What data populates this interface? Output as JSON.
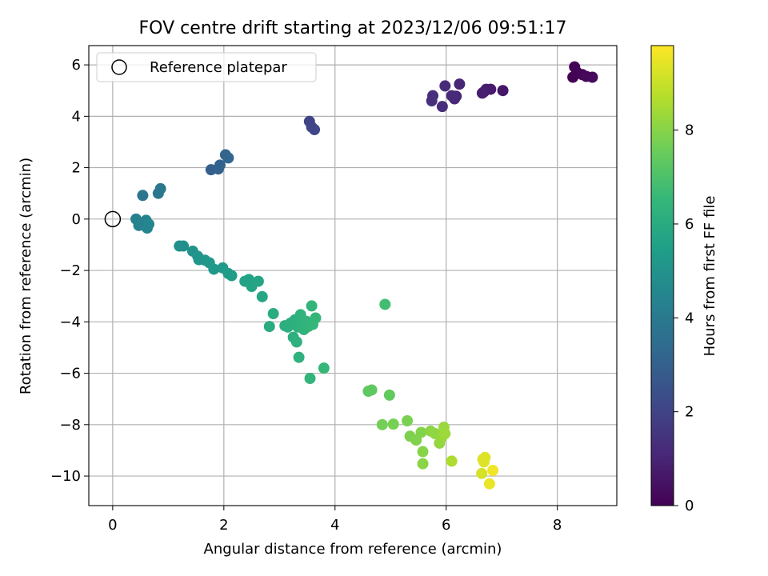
{
  "chart_data": {
    "type": "scatter",
    "title": "FOV centre drift starting at 2023/12/06 09:51:17",
    "xlabel": "Angular distance from reference (arcmin)",
    "ylabel": "Rotation from reference (arcmin)",
    "xlim": [
      -0.43,
      9.07
    ],
    "ylim": [
      -11.15,
      6.75
    ],
    "xticks": [
      0,
      2,
      4,
      6,
      8
    ],
    "yticks": [
      6,
      4,
      2,
      0,
      -2,
      -4,
      -6,
      -8,
      -10
    ],
    "ytick_labels": [
      "6",
      "4",
      "2",
      "0",
      "−2",
      "−4",
      "−6",
      "−8",
      "−10"
    ],
    "grid": true,
    "legend": {
      "placement": "upper-left",
      "entries": [
        "Reference platepar"
      ]
    },
    "reference_point": {
      "x": 0,
      "y": 0
    },
    "colorbar": {
      "label": "Hours from first FF file",
      "range": [
        0,
        9.8
      ],
      "ticks": [
        0,
        2,
        4,
        6,
        8
      ],
      "colormap": "viridis",
      "colors": [
        "#440154",
        "#482878",
        "#3e4989",
        "#31688e",
        "#26828e",
        "#1f9e89",
        "#35b779",
        "#6ece58",
        "#b5de2b",
        "#fde725"
      ]
    },
    "points": [
      {
        "x": 8.28,
        "y": 5.52,
        "h": 0.0
      },
      {
        "x": 8.31,
        "y": 5.92,
        "h": 0.05
      },
      {
        "x": 8.35,
        "y": 5.72,
        "h": 0.1
      },
      {
        "x": 8.45,
        "y": 5.62,
        "h": 0.15
      },
      {
        "x": 8.52,
        "y": 5.55,
        "h": 0.2
      },
      {
        "x": 8.63,
        "y": 5.52,
        "h": 0.25
      },
      {
        "x": 7.02,
        "y": 5.0,
        "h": 0.6
      },
      {
        "x": 6.8,
        "y": 5.05,
        "h": 0.7
      },
      {
        "x": 6.72,
        "y": 5.05,
        "h": 0.75
      },
      {
        "x": 6.68,
        "y": 4.95,
        "h": 0.8
      },
      {
        "x": 6.65,
        "y": 4.9,
        "h": 0.85
      },
      {
        "x": 6.24,
        "y": 5.25,
        "h": 1.0
      },
      {
        "x": 6.18,
        "y": 4.78,
        "h": 1.05
      },
      {
        "x": 6.15,
        "y": 4.68,
        "h": 1.1
      },
      {
        "x": 6.1,
        "y": 4.8,
        "h": 1.15
      },
      {
        "x": 5.98,
        "y": 5.18,
        "h": 1.2
      },
      {
        "x": 5.93,
        "y": 4.38,
        "h": 1.25
      },
      {
        "x": 5.76,
        "y": 4.8,
        "h": 1.3
      },
      {
        "x": 5.74,
        "y": 4.6,
        "h": 1.35
      },
      {
        "x": 3.54,
        "y": 3.8,
        "h": 2.0
      },
      {
        "x": 3.58,
        "y": 3.58,
        "h": 2.05
      },
      {
        "x": 3.63,
        "y": 3.48,
        "h": 2.1
      },
      {
        "x": 1.77,
        "y": 1.92,
        "h": 3.0
      },
      {
        "x": 1.9,
        "y": 1.95,
        "h": 3.05
      },
      {
        "x": 1.93,
        "y": 2.1,
        "h": 3.1
      },
      {
        "x": 2.03,
        "y": 2.5,
        "h": 3.15
      },
      {
        "x": 2.08,
        "y": 2.38,
        "h": 3.2
      },
      {
        "x": 0.54,
        "y": 0.92,
        "h": 3.8
      },
      {
        "x": 0.82,
        "y": 1.0,
        "h": 3.85
      },
      {
        "x": 0.86,
        "y": 1.18,
        "h": 3.9
      },
      {
        "x": 0.42,
        "y": 0.0,
        "h": 4.3
      },
      {
        "x": 0.47,
        "y": -0.25,
        "h": 4.35
      },
      {
        "x": 0.6,
        "y": -0.05,
        "h": 4.4
      },
      {
        "x": 0.62,
        "y": -0.35,
        "h": 4.45
      },
      {
        "x": 0.65,
        "y": -0.2,
        "h": 4.5
      },
      {
        "x": 1.2,
        "y": -1.05,
        "h": 4.9
      },
      {
        "x": 1.27,
        "y": -1.05,
        "h": 4.95
      },
      {
        "x": 1.44,
        "y": -1.25,
        "h": 5.0
      },
      {
        "x": 1.53,
        "y": -1.45,
        "h": 5.05
      },
      {
        "x": 1.55,
        "y": -1.58,
        "h": 5.1
      },
      {
        "x": 1.66,
        "y": -1.6,
        "h": 5.15
      },
      {
        "x": 1.74,
        "y": -1.7,
        "h": 5.2
      },
      {
        "x": 1.82,
        "y": -1.95,
        "h": 5.25
      },
      {
        "x": 1.98,
        "y": -1.9,
        "h": 5.3
      },
      {
        "x": 2.08,
        "y": -2.12,
        "h": 5.35
      },
      {
        "x": 2.14,
        "y": -2.2,
        "h": 5.4
      },
      {
        "x": 2.38,
        "y": -2.42,
        "h": 5.6
      },
      {
        "x": 2.45,
        "y": -2.35,
        "h": 5.65
      },
      {
        "x": 2.5,
        "y": -2.62,
        "h": 5.7
      },
      {
        "x": 2.62,
        "y": -2.42,
        "h": 5.75
      },
      {
        "x": 2.69,
        "y": -3.02,
        "h": 5.8
      },
      {
        "x": 2.82,
        "y": -4.18,
        "h": 6.0
      },
      {
        "x": 2.89,
        "y": -3.68,
        "h": 6.05
      },
      {
        "x": 3.1,
        "y": -4.15,
        "h": 6.1
      },
      {
        "x": 3.15,
        "y": -4.2,
        "h": 6.12
      },
      {
        "x": 3.2,
        "y": -4.05,
        "h": 6.15
      },
      {
        "x": 3.25,
        "y": -4.6,
        "h": 6.18
      },
      {
        "x": 3.28,
        "y": -3.92,
        "h": 6.2
      },
      {
        "x": 3.31,
        "y": -4.78,
        "h": 6.22
      },
      {
        "x": 3.33,
        "y": -4.2,
        "h": 6.25
      },
      {
        "x": 3.35,
        "y": -5.38,
        "h": 6.28
      },
      {
        "x": 3.38,
        "y": -3.72,
        "h": 6.3
      },
      {
        "x": 3.41,
        "y": -4.08,
        "h": 6.32
      },
      {
        "x": 3.44,
        "y": -4.3,
        "h": 6.35
      },
      {
        "x": 3.48,
        "y": -3.98,
        "h": 6.38
      },
      {
        "x": 3.52,
        "y": -4.18,
        "h": 6.4
      },
      {
        "x": 3.55,
        "y": -6.2,
        "h": 6.42
      },
      {
        "x": 3.58,
        "y": -3.38,
        "h": 6.45
      },
      {
        "x": 3.6,
        "y": -4.1,
        "h": 6.48
      },
      {
        "x": 3.65,
        "y": -3.85,
        "h": 6.5
      },
      {
        "x": 3.8,
        "y": -5.8,
        "h": 6.55
      },
      {
        "x": 4.9,
        "y": -3.32,
        "h": 6.8
      },
      {
        "x": 4.6,
        "y": -6.7,
        "h": 7.3
      },
      {
        "x": 4.66,
        "y": -6.65,
        "h": 7.35
      },
      {
        "x": 4.98,
        "y": -6.85,
        "h": 7.4
      },
      {
        "x": 4.85,
        "y": -8.0,
        "h": 7.7
      },
      {
        "x": 5.05,
        "y": -7.98,
        "h": 7.75
      },
      {
        "x": 5.3,
        "y": -7.85,
        "h": 7.8
      },
      {
        "x": 5.35,
        "y": -8.45,
        "h": 7.85
      },
      {
        "x": 5.46,
        "y": -8.6,
        "h": 7.9
      },
      {
        "x": 5.55,
        "y": -8.3,
        "h": 7.95
      },
      {
        "x": 5.58,
        "y": -9.05,
        "h": 8.0
      },
      {
        "x": 5.58,
        "y": -9.52,
        "h": 8.05
      },
      {
        "x": 5.72,
        "y": -8.25,
        "h": 8.1
      },
      {
        "x": 5.8,
        "y": -8.35,
        "h": 8.15
      },
      {
        "x": 5.88,
        "y": -8.72,
        "h": 8.2
      },
      {
        "x": 5.92,
        "y": -8.5,
        "h": 8.25
      },
      {
        "x": 5.96,
        "y": -8.1,
        "h": 8.3
      },
      {
        "x": 5.98,
        "y": -8.35,
        "h": 8.35
      },
      {
        "x": 6.1,
        "y": -9.42,
        "h": 8.6
      },
      {
        "x": 6.64,
        "y": -9.9,
        "h": 9.2
      },
      {
        "x": 6.66,
        "y": -9.35,
        "h": 9.25
      },
      {
        "x": 6.7,
        "y": -9.28,
        "h": 9.3
      },
      {
        "x": 6.68,
        "y": -9.45,
        "h": 9.35
      },
      {
        "x": 6.78,
        "y": -10.3,
        "h": 9.5
      },
      {
        "x": 6.84,
        "y": -9.78,
        "h": 9.6
      }
    ]
  }
}
